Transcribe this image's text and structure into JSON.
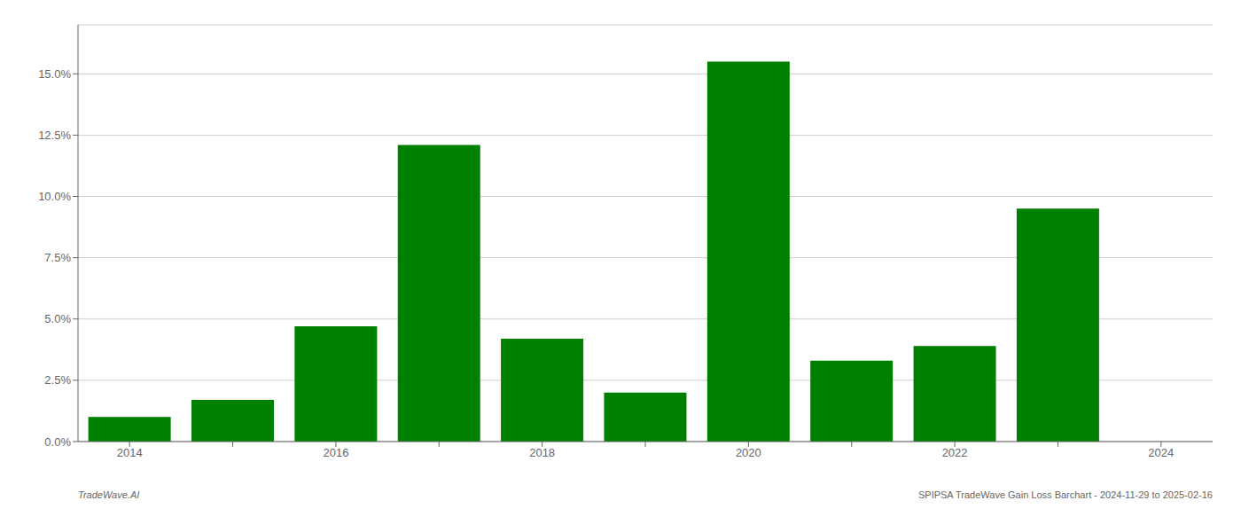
{
  "chart_data": {
    "type": "bar",
    "categories": [
      "2014",
      null,
      "2016",
      null,
      "2018",
      null,
      "2020",
      null,
      "2022",
      null,
      "2024"
    ],
    "values": [
      0.01,
      0.017,
      0.047,
      0.121,
      0.042,
      0.02,
      0.155,
      0.033,
      0.039,
      0.095,
      0.0
    ],
    "color": "#008000",
    "ylim": [
      0,
      0.17
    ],
    "yticks": [
      {
        "value": 0.0,
        "label": "0.0%"
      },
      {
        "value": 0.025,
        "label": "2.5%"
      },
      {
        "value": 0.05,
        "label": "5.0%"
      },
      {
        "value": 0.075,
        "label": "7.5%"
      },
      {
        "value": 0.1,
        "label": "10.0%"
      },
      {
        "value": 0.125,
        "label": "12.5%"
      },
      {
        "value": 0.15,
        "label": "15.0%"
      }
    ],
    "grid": true,
    "annotations": [
      "TradeWave.AI",
      "SPIPSA TradeWave Gain Loss Barchart - 2024-11-29 to 2025-02-16"
    ]
  }
}
